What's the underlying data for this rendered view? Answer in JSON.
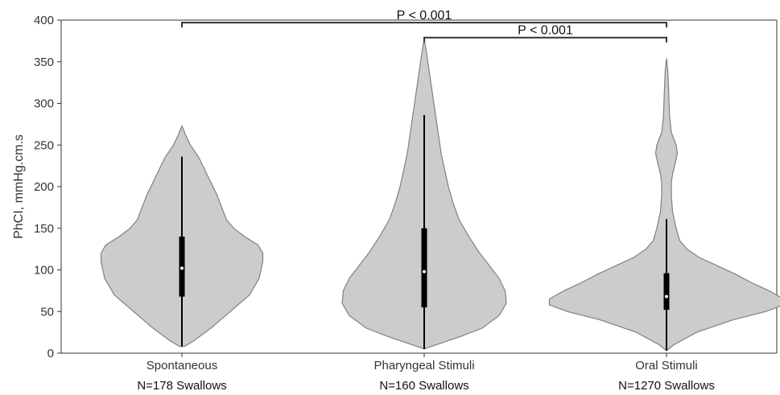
{
  "chart_data": {
    "type": "violin",
    "ylabel": "PhCI, mmHg.cm.s",
    "ylim": [
      0,
      400
    ],
    "yticks": [
      0,
      50,
      100,
      150,
      200,
      250,
      300,
      350,
      400
    ],
    "grid": false,
    "colors": {
      "violin_fill": "#cccccc",
      "violin_edge": "#808080",
      "box": "#000000",
      "median": "#ffffff"
    },
    "categories": [
      {
        "name": "Spontaneous",
        "n_label": "N=178 Swallows",
        "min": 8,
        "q1": 68,
        "median": 102,
        "q3": 140,
        "whisker_high": 236,
        "max": 273,
        "density": [
          [
            8,
            0.02
          ],
          [
            15,
            0.1
          ],
          [
            30,
            0.24
          ],
          [
            50,
            0.4
          ],
          [
            70,
            0.56
          ],
          [
            90,
            0.64
          ],
          [
            110,
            0.67
          ],
          [
            120,
            0.67
          ],
          [
            130,
            0.63
          ],
          [
            140,
            0.52
          ],
          [
            150,
            0.43
          ],
          [
            160,
            0.37
          ],
          [
            175,
            0.33
          ],
          [
            190,
            0.29
          ],
          [
            205,
            0.24
          ],
          [
            220,
            0.19
          ],
          [
            235,
            0.14
          ],
          [
            250,
            0.07
          ],
          [
            262,
            0.03
          ],
          [
            273,
            0.0
          ]
        ]
      },
      {
        "name": "Pharyngeal Stimuli",
        "n_label": "N=160 Swallows",
        "min": 5,
        "q1": 55,
        "median": 98,
        "q3": 150,
        "whisker_high": 286,
        "max": 378,
        "density": [
          [
            5,
            0.0
          ],
          [
            10,
            0.1
          ],
          [
            20,
            0.3
          ],
          [
            30,
            0.48
          ],
          [
            45,
            0.62
          ],
          [
            60,
            0.68
          ],
          [
            75,
            0.67
          ],
          [
            90,
            0.62
          ],
          [
            105,
            0.54
          ],
          [
            120,
            0.46
          ],
          [
            140,
            0.37
          ],
          [
            160,
            0.29
          ],
          [
            180,
            0.24
          ],
          [
            200,
            0.2
          ],
          [
            220,
            0.17
          ],
          [
            240,
            0.14
          ],
          [
            260,
            0.12
          ],
          [
            280,
            0.1
          ],
          [
            300,
            0.08
          ],
          [
            320,
            0.06
          ],
          [
            340,
            0.04
          ],
          [
            360,
            0.02
          ],
          [
            378,
            0.0
          ]
        ]
      },
      {
        "name": "Oral Stimuli",
        "n_label": "N=1270 Swallows",
        "min": 3,
        "q1": 52,
        "median": 68,
        "q3": 96,
        "whisker_high": 161,
        "max": 354,
        "density": [
          [
            3,
            0.0
          ],
          [
            10,
            0.06
          ],
          [
            25,
            0.25
          ],
          [
            40,
            0.55
          ],
          [
            50,
            0.82
          ],
          [
            58,
            0.97
          ],
          [
            65,
            0.97
          ],
          [
            75,
            0.85
          ],
          [
            85,
            0.7
          ],
          [
            95,
            0.57
          ],
          [
            105,
            0.42
          ],
          [
            115,
            0.27
          ],
          [
            125,
            0.17
          ],
          [
            135,
            0.11
          ],
          [
            150,
            0.08
          ],
          [
            170,
            0.05
          ],
          [
            190,
            0.04
          ],
          [
            205,
            0.04
          ],
          [
            215,
            0.05
          ],
          [
            230,
            0.075
          ],
          [
            240,
            0.09
          ],
          [
            250,
            0.08
          ],
          [
            265,
            0.04
          ],
          [
            285,
            0.025
          ],
          [
            305,
            0.02
          ],
          [
            325,
            0.015
          ],
          [
            340,
            0.01
          ],
          [
            354,
            0.0
          ]
        ]
      }
    ],
    "significance": [
      {
        "from": 0,
        "to": 2,
        "label": "P < 0.001",
        "y": 397
      },
      {
        "from": 1,
        "to": 2,
        "label": "P < 0.001",
        "y": 379
      }
    ]
  }
}
